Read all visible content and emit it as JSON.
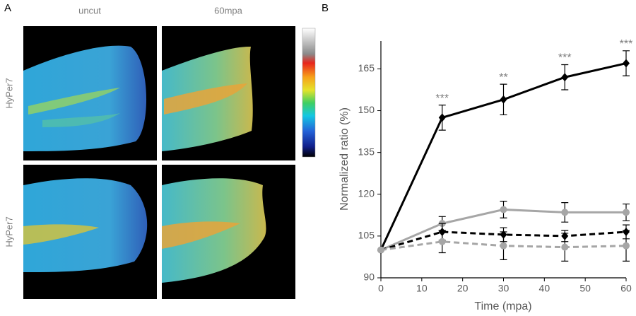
{
  "panel_a": {
    "label": "A",
    "columns": [
      "uncut",
      "60mpa"
    ],
    "rows": [
      "HyPer7",
      "HyPer7"
    ]
  },
  "chart_data": {
    "type": "line",
    "label": "B",
    "x_label": "Time (mpa)",
    "y_label": "Normalized ratio (%)",
    "x": [
      0,
      15,
      30,
      45,
      60
    ],
    "xlim": [
      0,
      60
    ],
    "xticks": [
      0,
      10,
      20,
      30,
      40,
      50,
      60
    ],
    "ylim": [
      90,
      175
    ],
    "yticks": [
      90,
      105,
      120,
      135,
      150,
      165
    ],
    "series": [
      {
        "color": "#000000",
        "dashed": false,
        "marker": "diamond",
        "values": [
          100,
          147.5,
          154,
          162,
          167
        ],
        "errors": [
          0,
          4.5,
          5.5,
          4.5,
          4.5
        ]
      },
      {
        "color": "#a6a6a6",
        "dashed": false,
        "marker": "circle",
        "values": [
          100,
          109.5,
          114.5,
          113.5,
          113.5
        ],
        "errors": [
          0,
          2.5,
          3,
          3.5,
          3
        ]
      },
      {
        "color": "#000000",
        "dashed": true,
        "marker": "diamond",
        "values": [
          100,
          106.5,
          105.5,
          105,
          106.5
        ],
        "errors": [
          0,
          3,
          2.5,
          2,
          2.5
        ]
      },
      {
        "color": "#a6a6a6",
        "dashed": true,
        "marker": "circle",
        "values": [
          100,
          103,
          101.5,
          101,
          101.5
        ],
        "errors": [
          0,
          4,
          5,
          5,
          5.5
        ]
      }
    ],
    "annotations": [
      {
        "x": 15,
        "text": "***"
      },
      {
        "x": 30,
        "text": "**"
      },
      {
        "x": 45,
        "text": "***"
      },
      {
        "x": 60,
        "text": "***"
      }
    ]
  }
}
